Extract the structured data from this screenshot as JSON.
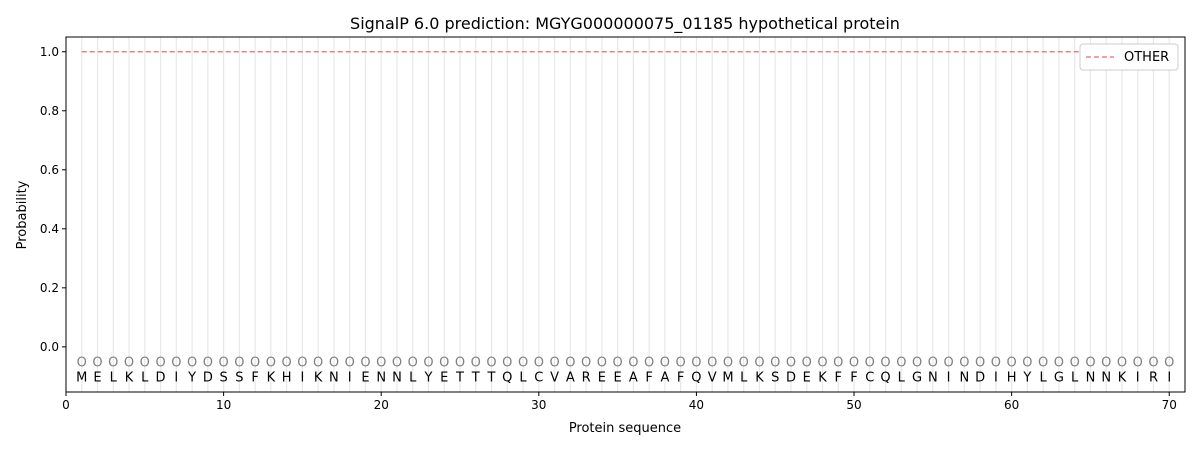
{
  "chart_data": {
    "type": "line",
    "title": "SignalP 6.0 prediction: MGYG000000075_01185 hypothetical protein",
    "xlabel": "Protein sequence",
    "ylabel": "Probability",
    "xlim": [
      0,
      71
    ],
    "ylim": [
      -0.153,
      1.05
    ],
    "xticks": [
      0,
      10,
      20,
      30,
      40,
      50,
      60,
      70
    ],
    "yticks": [
      0.0,
      0.2,
      0.4,
      0.6,
      0.8,
      1.0
    ],
    "ytick_labels": [
      "0.0",
      "0.2",
      "0.4",
      "0.6",
      "0.8",
      "1.0"
    ],
    "sequence": [
      "M",
      "E",
      "L",
      "K",
      "L",
      "D",
      "I",
      "Y",
      "D",
      "S",
      "S",
      "F",
      "K",
      "H",
      "I",
      "K",
      "N",
      "I",
      "E",
      "N",
      "N",
      "L",
      "Y",
      "E",
      "T",
      "T",
      "T",
      "Q",
      "L",
      "C",
      "V",
      "A",
      "R",
      "E",
      "E",
      "A",
      "F",
      "A",
      "F",
      "Q",
      "V",
      "M",
      "L",
      "K",
      "S",
      "D",
      "E",
      "K",
      "F",
      "F",
      "C",
      "Q",
      "L",
      "G",
      "N",
      "I",
      "N",
      "D",
      "I",
      "H",
      "Y",
      "L",
      "G",
      "L",
      "N",
      "N",
      "K",
      "I",
      "R",
      "I"
    ],
    "position_labels": "OOOOOOOOOOOOOOOOOOOOOOOOOOOOOOOOOOOOOOOOOOOOOOOOOOOOOOOOOOOOOOOOOOOOOO",
    "series": [
      {
        "name": "OTHER",
        "color": "#f08080",
        "style": "dashed",
        "x_range": [
          1,
          70
        ],
        "value": 1.0
      }
    ],
    "legend": {
      "placement": "top-right",
      "entries": [
        "OTHER"
      ]
    },
    "grid": "vertical lines at each residue position"
  }
}
